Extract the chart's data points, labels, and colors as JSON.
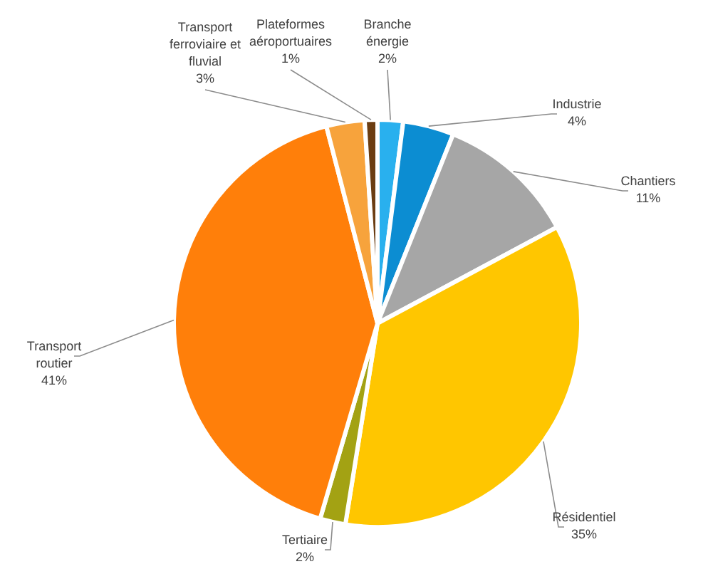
{
  "chart_data": {
    "type": "pie",
    "categories": [
      "Branche énergie",
      "Industrie",
      "Chantiers",
      "Résidentiel",
      "Tertiaire",
      "Transport routier",
      "Transport ferroviaire et fluvial",
      "Plateformes aéroportuaires"
    ],
    "values": [
      2,
      4,
      11,
      35,
      2,
      41,
      3,
      1
    ],
    "value_labels": [
      "2%",
      "4%",
      "11%",
      "35%",
      "2%",
      "41%",
      "3%",
      "1%"
    ],
    "colors": [
      "#29b0ee",
      "#0c8dd2",
      "#a6a6a6",
      "#ffc600",
      "#a3a213",
      "#ff7f0a",
      "#f7a33c",
      "#6b3d12"
    ]
  }
}
